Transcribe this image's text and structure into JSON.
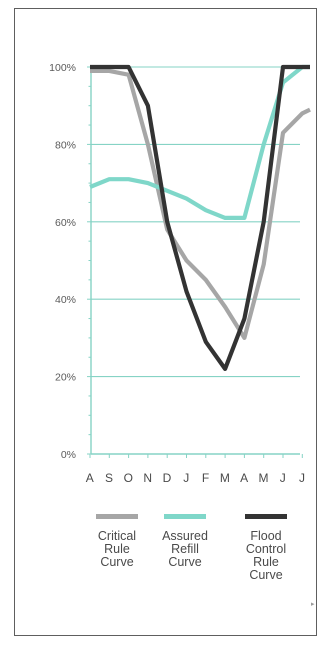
{
  "chart_data": {
    "type": "line",
    "categories": [
      "A",
      "S",
      "O",
      "N",
      "D",
      "J",
      "F",
      "M",
      "A",
      "M",
      "J",
      "J"
    ],
    "y_tick_labels": [
      "0%",
      "20%",
      "40%",
      "60%",
      "80%",
      "100%"
    ],
    "ylim": [
      0,
      100
    ],
    "grid": true,
    "legend_position": "bottom",
    "series": [
      {
        "name": "Critical Rule Curve",
        "name_lines": [
          "Critical",
          "Rule",
          "Curve"
        ],
        "color": "#a6a6a6",
        "x": [
          0,
          1,
          2,
          3,
          4,
          5,
          6,
          7,
          8,
          9,
          10,
          11,
          11.4
        ],
        "values": [
          99,
          99,
          98,
          80,
          58,
          50,
          45,
          38,
          30,
          49,
          83,
          88,
          89
        ]
      },
      {
        "name": "Assured Refill Curve",
        "name_lines": [
          "Assured",
          "Refill",
          "Curve"
        ],
        "color": "#7fd7c9",
        "x": [
          0,
          1,
          2,
          3,
          4,
          5,
          6,
          7,
          8,
          9,
          10,
          11,
          11.4
        ],
        "values": [
          69,
          71,
          71,
          70,
          68,
          66,
          63,
          61,
          61,
          80,
          96,
          100,
          100
        ]
      },
      {
        "name": "Flood Control Rule Curve",
        "name_lines": [
          "Flood",
          "Control",
          "Rule",
          "Curve"
        ],
        "color": "#333333",
        "x": [
          0,
          1,
          2,
          3,
          4,
          5,
          6,
          7,
          8,
          9,
          10,
          11,
          11.4
        ],
        "values": [
          100,
          100,
          100,
          90,
          60,
          42,
          29,
          22,
          35,
          60,
          100,
          100,
          100
        ]
      }
    ]
  }
}
